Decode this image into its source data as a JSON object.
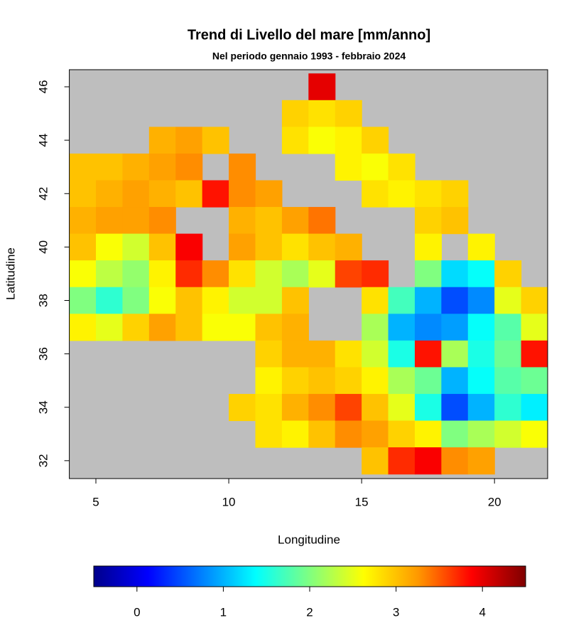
{
  "chart_data": {
    "type": "heatmap",
    "title": "Trend di Livello del mare [mm/anno]",
    "subtitle": "Nel periodo gennaio 1993 - febbraio 2024",
    "x_label": "Longitudine",
    "y_label": "Latitudine",
    "xlim": [
      4,
      22
    ],
    "xticks": [
      5,
      10,
      15,
      20
    ],
    "ylim": [
      31.33,
      46.64
    ],
    "yticks": [
      32,
      34,
      36,
      38,
      40,
      42,
      44,
      46
    ],
    "background": "#bebebe",
    "colormap": [
      "#00008b",
      "#0000ff",
      "#0080ff",
      "#00ffff",
      "#80ff80",
      "#ffff00",
      "#ff9900",
      "#ff0000",
      "#7f0000"
    ],
    "clim": [
      -0.5,
      4.5
    ],
    "cticks": [
      0,
      1,
      2,
      3,
      4
    ],
    "x": [
      4.5,
      5.5,
      6.5,
      7.5,
      8.5,
      9.5,
      10.5,
      11.5,
      12.5,
      13.5,
      14.5,
      15.5,
      16.5,
      17.5,
      18.5,
      19.5,
      20.5,
      21.5
    ],
    "y": [
      46,
      45,
      44,
      43,
      42,
      41,
      40,
      39,
      38,
      37,
      36,
      35,
      34,
      33,
      32
    ],
    "z": [
      [
        null,
        null,
        null,
        null,
        null,
        null,
        null,
        null,
        null,
        4.0,
        null,
        null,
        null,
        null,
        null,
        null,
        null,
        null
      ],
      [
        null,
        null,
        null,
        null,
        null,
        null,
        null,
        null,
        2.9,
        2.8,
        2.9,
        null,
        null,
        null,
        null,
        null,
        null,
        null
      ],
      [
        null,
        null,
        null,
        3.1,
        3.2,
        3.0,
        null,
        null,
        2.8,
        2.6,
        2.7,
        2.9,
        null,
        null,
        null,
        null,
        null,
        null
      ],
      [
        3.0,
        3.0,
        3.1,
        3.2,
        3.3,
        null,
        3.3,
        null,
        null,
        null,
        2.7,
        2.6,
        2.8,
        null,
        null,
        null,
        null,
        null
      ],
      [
        3.0,
        3.1,
        3.2,
        3.1,
        3.0,
        3.8,
        3.3,
        3.2,
        null,
        null,
        null,
        2.8,
        2.7,
        2.8,
        2.9,
        null,
        null,
        null
      ],
      [
        3.1,
        3.2,
        3.2,
        3.3,
        null,
        null,
        3.1,
        3.0,
        3.2,
        3.4,
        null,
        null,
        null,
        2.9,
        3.0,
        null,
        null,
        null
      ],
      [
        3.0,
        2.6,
        2.4,
        3.0,
        3.9,
        null,
        3.2,
        3.0,
        2.8,
        3.0,
        3.1,
        null,
        null,
        2.7,
        null,
        2.7,
        null,
        null
      ],
      [
        2.6,
        2.3,
        2.1,
        2.7,
        3.7,
        3.3,
        2.8,
        2.4,
        2.2,
        2.5,
        3.6,
        3.7,
        null,
        2.0,
        1.2,
        1.4,
        2.9,
        null
      ],
      [
        2.0,
        1.6,
        2.0,
        2.6,
        3.0,
        2.7,
        2.4,
        2.4,
        3.0,
        null,
        null,
        2.8,
        1.7,
        1.0,
        0.5,
        0.8,
        2.5,
        2.9
      ],
      [
        2.7,
        2.5,
        2.9,
        3.2,
        3.0,
        2.6,
        2.6,
        3.0,
        3.1,
        null,
        null,
        2.2,
        1.0,
        0.8,
        0.9,
        1.4,
        1.8,
        2.5
      ],
      [
        null,
        null,
        null,
        null,
        null,
        null,
        null,
        2.9,
        3.1,
        3.1,
        2.8,
        2.4,
        1.5,
        3.8,
        2.2,
        1.5,
        1.9,
        3.8
      ],
      [
        null,
        null,
        null,
        null,
        null,
        null,
        null,
        2.7,
        2.9,
        3.0,
        2.9,
        2.7,
        2.2,
        1.9,
        1.0,
        1.4,
        1.8,
        1.9
      ],
      [
        null,
        null,
        null,
        null,
        null,
        null,
        2.9,
        2.8,
        3.1,
        3.3,
        3.6,
        3.0,
        2.5,
        1.5,
        0.5,
        1.0,
        1.6,
        1.3
      ],
      [
        null,
        null,
        null,
        null,
        null,
        null,
        null,
        2.8,
        2.7,
        3.0,
        3.3,
        3.2,
        2.9,
        2.7,
        2.0,
        2.2,
        2.4,
        2.6
      ],
      [
        null,
        null,
        null,
        null,
        null,
        null,
        null,
        null,
        null,
        null,
        null,
        3.0,
        3.7,
        3.9,
        3.3,
        3.2,
        null,
        null
      ]
    ]
  }
}
